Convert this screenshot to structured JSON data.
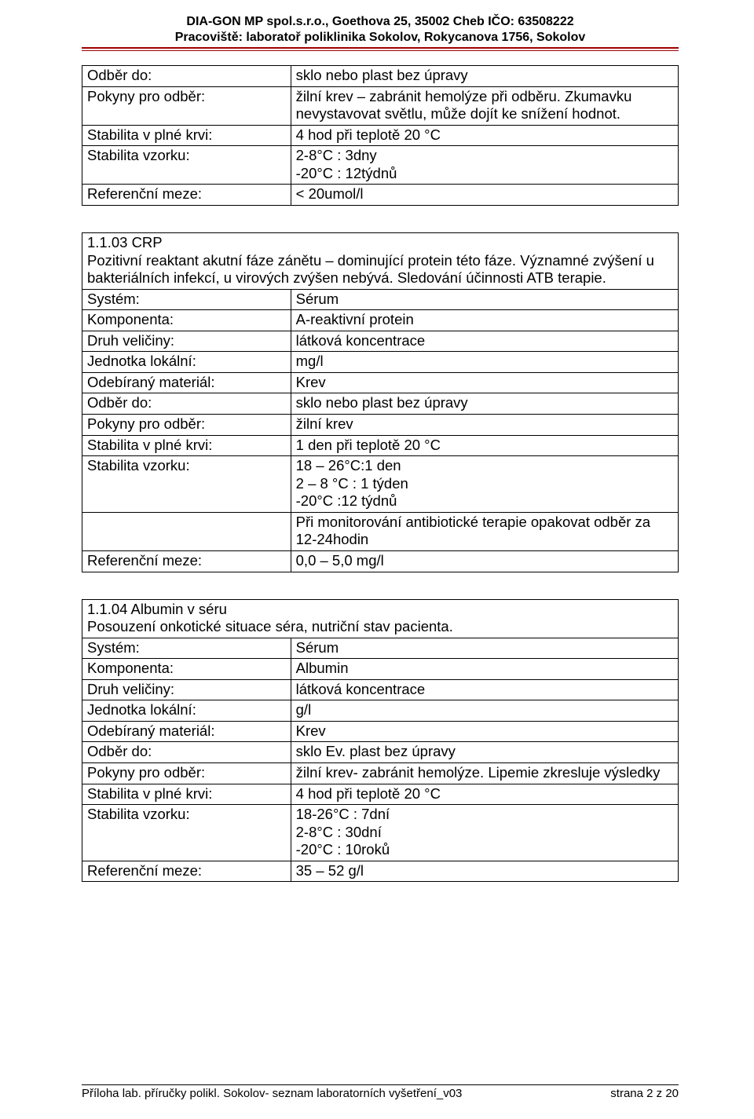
{
  "letterhead": {
    "line1": "DIA-GON MP spol.s.r.o., Goethova 25, 35002 Cheb IČO: 63508222",
    "line2": "Pracoviště: laboratoř poliklinika Sokolov, Rokycanova 1756, Sokolov"
  },
  "colors": {
    "divider": "#a00000",
    "text": "#000000",
    "border": "#000000",
    "background": "#ffffff"
  },
  "tables": [
    {
      "rows": [
        {
          "label": "Odběr do:",
          "value": "sklo nebo plast bez úpravy"
        },
        {
          "label": "Pokyny pro odběr:",
          "value": "žilní krev – zabránit hemolýze při odběru. Zkumavku nevystavovat světlu, může dojít ke snížení hodnot."
        },
        {
          "label": "Stabilita v plné krvi:",
          "value": "4 hod při teplotě 20 °C"
        },
        {
          "label": "Stabilita vzorku:",
          "value": "2-8°C : 3dny\n-20°C : 12týdnů"
        },
        {
          "label": "Referenční meze:",
          "value": "< 20umol/l"
        }
      ]
    },
    {
      "header": "1.1.03  CRP\nPozitivní reaktant akutní fáze zánětu – dominující protein této fáze. Významné zvýšení u bakteriálních infekcí, u virových zvýšen nebývá. Sledování účinnosti ATB terapie.",
      "rows": [
        {
          "label": "Systém:",
          "value": "Sérum"
        },
        {
          "label": "Komponenta:",
          "value": "A-reaktivní protein"
        },
        {
          "label": "Druh veličiny:",
          "value": "látková koncentrace"
        },
        {
          "label": "Jednotka lokální:",
          "value": "mg/l"
        },
        {
          "label": "Odebíraný materiál:",
          "value": "Krev"
        },
        {
          "label": "Odběr do:",
          "value": "sklo nebo plast bez úpravy"
        },
        {
          "label": "Pokyny pro odběr:",
          "value": "žilní krev"
        },
        {
          "label": "Stabilita v plné krvi:",
          "value": "1 den  při teplotě 20 °C"
        },
        {
          "label": "Stabilita vzorku:",
          "value": "18 – 26°C:1 den\n2 – 8 °C  : 1 týden\n-20°C      :12 týdnů"
        },
        {
          "label": "",
          "value": "Při monitorování antibiotické terapie opakovat odběr za 12-24hodin"
        },
        {
          "label": "Referenční meze:",
          "value": "0,0 – 5,0 mg/l"
        }
      ]
    },
    {
      "header": "1.1.04 Albumin v séru\nPosouzení onkotické situace séra, nutriční stav pacienta.",
      "rows": [
        {
          "label": "Systém:",
          "value": "Sérum"
        },
        {
          "label": "Komponenta:",
          "value": "Albumin"
        },
        {
          "label": "Druh veličiny:",
          "value": "látková koncentrace"
        },
        {
          "label": "Jednotka lokální:",
          "value": "g/l"
        },
        {
          "label": "Odebíraný materiál:",
          "value": "Krev"
        },
        {
          "label": "Odběr do:",
          "value": "sklo Ev. plast bez úpravy"
        },
        {
          "label": "Pokyny pro odběr:",
          "value": "žilní krev- zabránit hemolýze. Lipemie zkresluje výsledky"
        },
        {
          "label": "Stabilita v plné krvi:",
          "value": "4 hod při teplotě 20 °C"
        },
        {
          "label": "Stabilita vzorku:",
          "value": "18-26°C : 7dní\n2-8°C     : 30dní\n-20°C     : 10roků"
        },
        {
          "label": "Referenční meze:",
          "value": "35 – 52 g/l"
        }
      ]
    }
  ],
  "footer": {
    "left": "Příloha lab. příručky polikl.  Sokolov- seznam laboratorních vyšetření_v03",
    "right": "strana 2 z 20"
  }
}
